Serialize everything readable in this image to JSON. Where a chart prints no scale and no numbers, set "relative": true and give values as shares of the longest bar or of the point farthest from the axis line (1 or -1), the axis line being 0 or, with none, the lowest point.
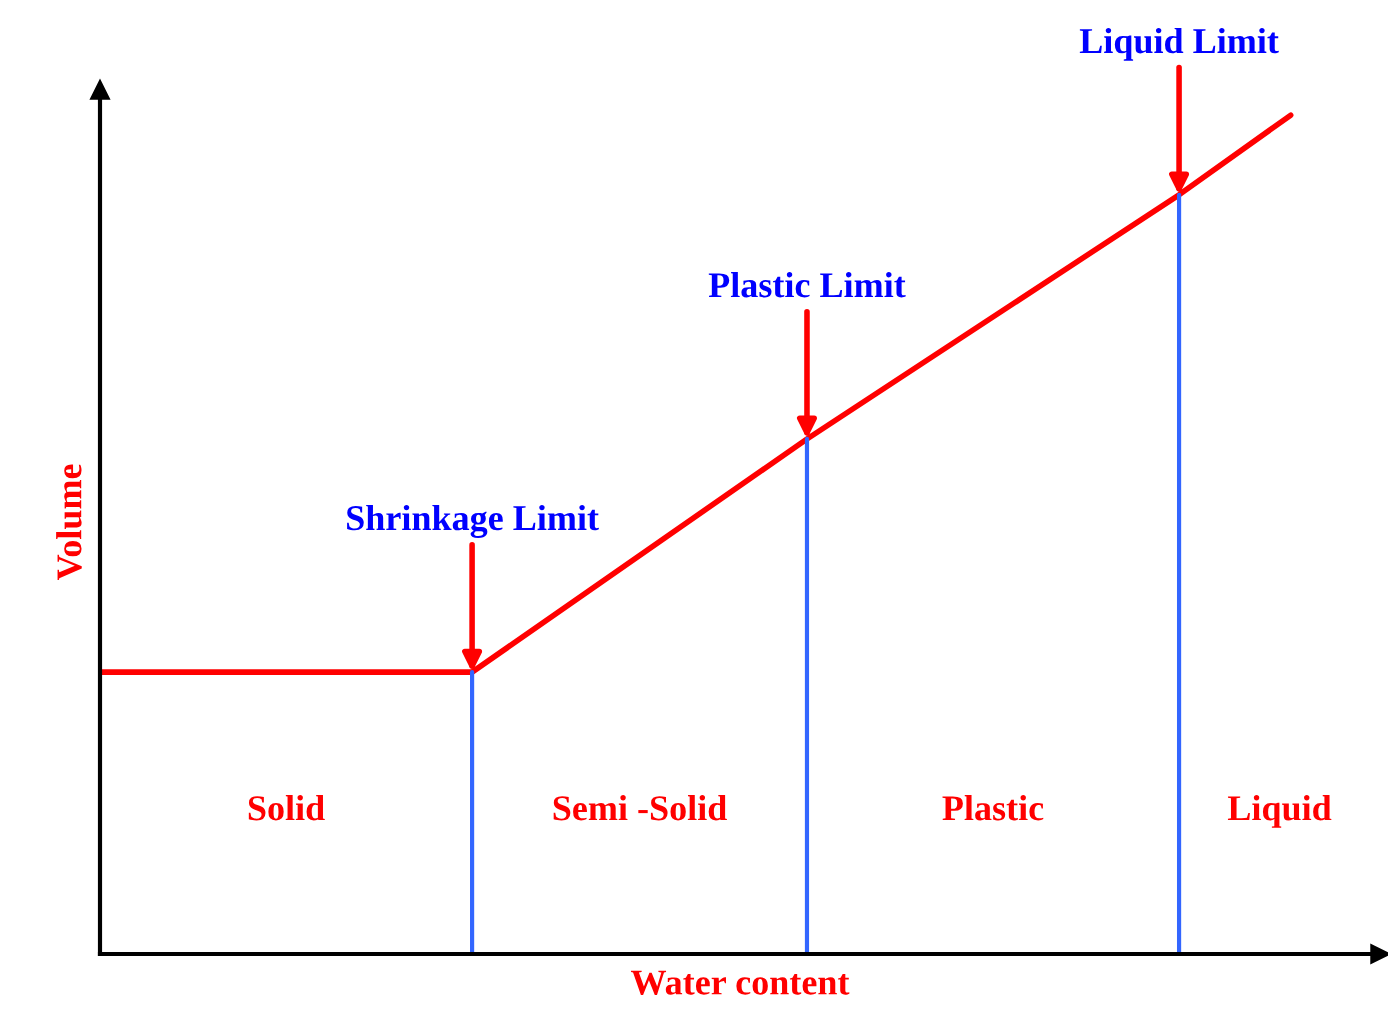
{
  "chart_data": {
    "type": "line",
    "relative": true,
    "xlabel": "Water content",
    "ylabel": "Volume",
    "categories": [
      null,
      null,
      null,
      null,
      null,
      null,
      null,
      null,
      null,
      null,
      null,
      null,
      null,
      null,
      null,
      null,
      null,
      null,
      null,
      null,
      null,
      null,
      null,
      null,
      null,
      null,
      null,
      null,
      null,
      null,
      null,
      null,
      null
    ],
    "series": [
      {
        "color": "#ff0000",
        "values": [
          0.336,
          null,
          null,
          null,
          null,
          null,
          null,
          null,
          null,
          null,
          0.336,
          null,
          null,
          null,
          null,
          null,
          null,
          null,
          null,
          0.614,
          null,
          null,
          null,
          null,
          null,
          null,
          null,
          null,
          null,
          0.905,
          null,
          null,
          1.0
        ]
      }
    ],
    "annotations": [
      "Shrinkage Limit",
      "Plastic Limit",
      "Liquid Limit",
      "Solid",
      "Semi -Solid",
      "Plastic",
      "Liquid"
    ]
  }
}
